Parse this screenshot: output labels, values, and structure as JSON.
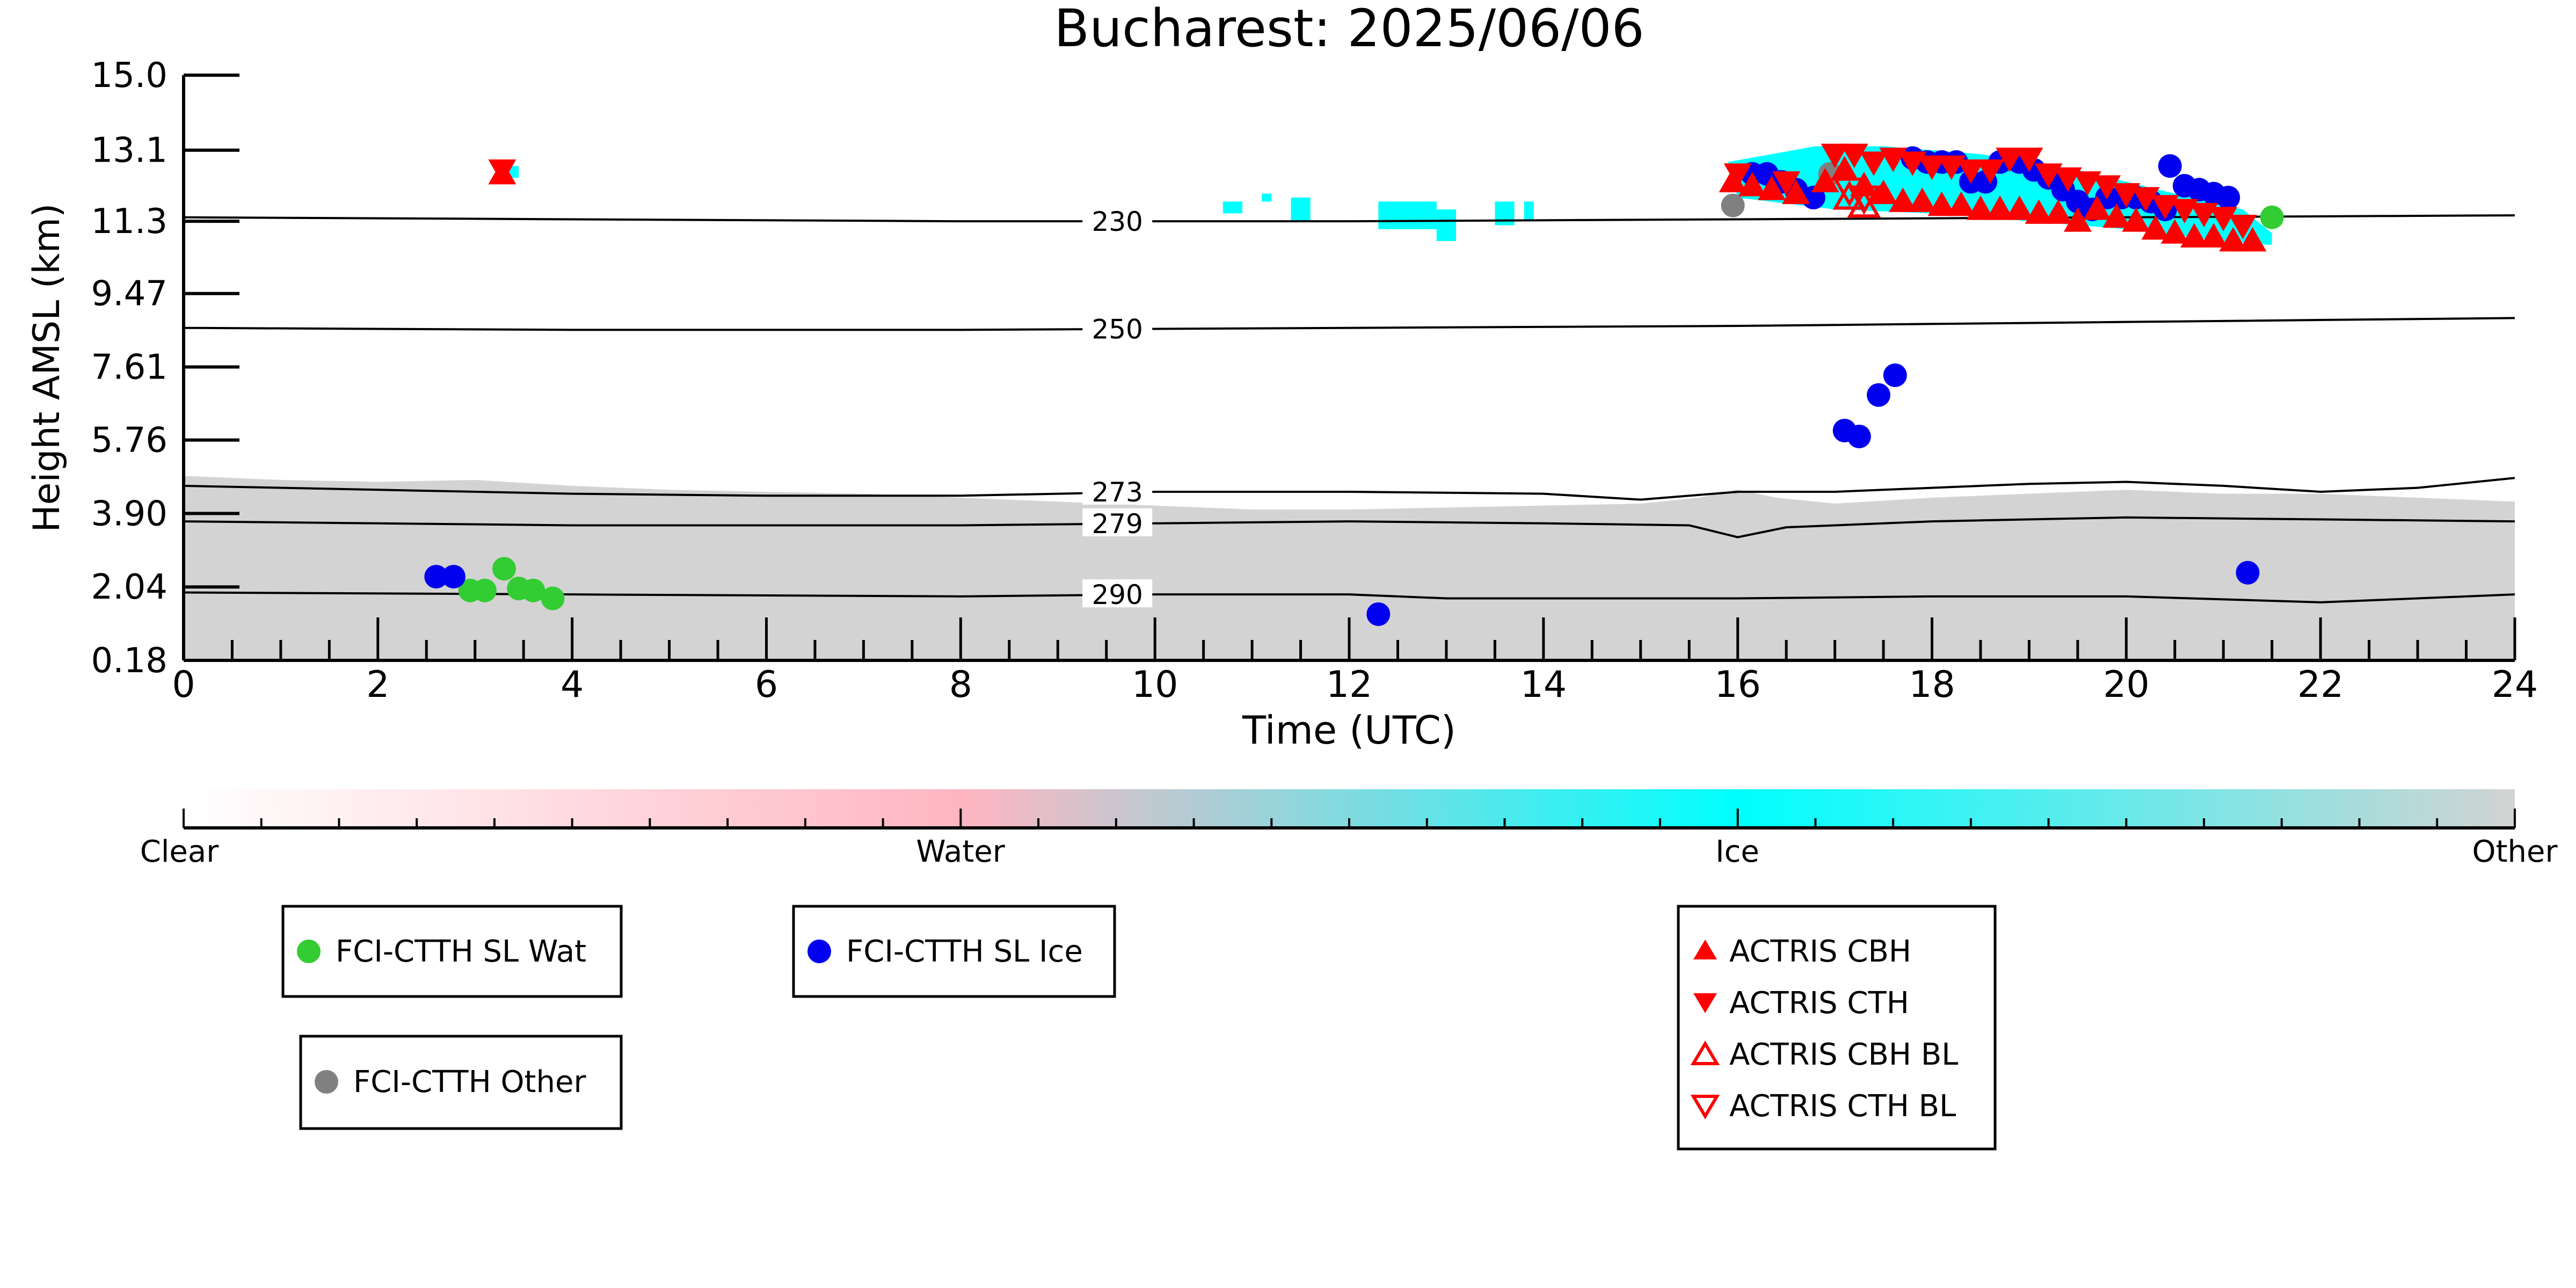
{
  "chart_data": {
    "type": "scatter",
    "title": "Bucharest: 2025/06/06",
    "xlabel": "Time (UTC)",
    "ylabel": "Height AMSL (km)",
    "xlim": [
      0,
      24
    ],
    "ylim": [
      0.18,
      15.0
    ],
    "x_ticks": [
      0,
      2,
      4,
      6,
      8,
      10,
      12,
      14,
      16,
      18,
      20,
      22,
      24
    ],
    "y_ticks": [
      "0.18",
      "2.04",
      "3.90",
      "5.76",
      "7.61",
      "9.47",
      "11.3",
      "13.1",
      "15.0"
    ],
    "grid": false,
    "colorbar": {
      "labels": [
        "Clear",
        "Water",
        "Ice",
        "Other"
      ],
      "colors": [
        "#ffffff",
        "#ffb6c1",
        "#00ffff",
        "#d3d3d3"
      ]
    },
    "temperature_contours": [
      {
        "label": "230",
        "x": [
          0,
          4,
          8,
          12,
          16,
          20,
          24
        ],
        "y": [
          11.4,
          11.35,
          11.3,
          11.3,
          11.35,
          11.4,
          11.45
        ]
      },
      {
        "label": "250",
        "x": [
          0,
          4,
          8,
          12,
          16,
          20,
          24
        ],
        "y": [
          8.6,
          8.55,
          8.55,
          8.6,
          8.65,
          8.75,
          8.85
        ]
      },
      {
        "label": "273",
        "x": [
          0,
          2,
          4,
          6,
          8,
          10,
          12,
          14,
          15,
          16,
          17,
          18,
          19,
          20,
          21,
          22,
          23,
          24
        ],
        "y": [
          4.6,
          4.5,
          4.4,
          4.35,
          4.35,
          4.45,
          4.45,
          4.4,
          4.25,
          4.45,
          4.45,
          4.55,
          4.65,
          4.7,
          4.6,
          4.45,
          4.55,
          4.8
        ]
      },
      {
        "label": "279",
        "x": [
          0,
          2,
          4,
          6,
          8,
          10,
          12,
          14,
          15.5,
          16,
          16.5,
          18,
          20,
          22,
          24
        ],
        "y": [
          3.7,
          3.65,
          3.6,
          3.6,
          3.6,
          3.65,
          3.7,
          3.65,
          3.6,
          3.3,
          3.55,
          3.7,
          3.8,
          3.75,
          3.7
        ]
      },
      {
        "label": "290",
        "x": [
          0,
          4,
          8,
          10,
          12,
          13,
          16,
          18,
          20,
          22,
          24
        ],
        "y": [
          1.9,
          1.85,
          1.8,
          1.85,
          1.85,
          1.75,
          1.75,
          1.8,
          1.8,
          1.65,
          1.85
        ]
      }
    ],
    "series": [
      {
        "name": "FCI-CTTH SL Wat",
        "color": "#33cc33",
        "marker": "circle",
        "x": [
          2.95,
          3.1,
          3.3,
          3.45,
          3.6,
          3.8,
          21.5
        ],
        "y": [
          1.95,
          1.95,
          2.5,
          2.0,
          1.95,
          1.75,
          11.4
        ]
      },
      {
        "name": "FCI-CTTH SL Ice",
        "color": "#0000ee",
        "marker": "circle",
        "x": [
          2.6,
          2.78,
          12.3,
          16.15,
          16.3,
          16.45,
          16.6,
          16.78,
          17.1,
          17.25,
          17.45,
          17.62,
          17.8,
          17.95,
          18.1,
          18.25,
          18.4,
          18.55,
          18.7,
          18.9,
          19.05,
          19.2,
          19.35,
          19.5,
          19.65,
          19.8,
          19.95,
          20.1,
          20.25,
          20.4,
          20.45,
          20.6,
          20.75,
          20.9,
          21.05,
          21.25
        ],
        "y": [
          2.3,
          2.3,
          1.35,
          12.5,
          12.5,
          12.3,
          12.1,
          11.9,
          6.0,
          5.85,
          6.9,
          7.4,
          12.9,
          12.8,
          12.8,
          12.8,
          12.3,
          12.3,
          12.8,
          12.8,
          12.6,
          12.4,
          12.1,
          11.8,
          11.6,
          11.9,
          11.9,
          11.9,
          11.8,
          11.6,
          12.7,
          12.2,
          12.1,
          12.0,
          11.9,
          2.4
        ]
      },
      {
        "name": "FCI-CTTH Other",
        "color": "#808080",
        "marker": "circle",
        "x": [
          15.95,
          16.95
        ],
        "y": [
          11.7,
          12.5
        ]
      },
      {
        "name": "ACTRIS CBH",
        "color": "#ff0000",
        "marker": "triangle-up",
        "x": [
          3.28,
          15.95,
          16.15,
          16.35,
          16.6,
          16.9,
          17.1,
          17.3,
          17.5,
          17.7,
          17.9,
          18.1,
          18.3,
          18.5,
          18.7,
          18.9,
          19.1,
          19.3,
          19.5,
          19.7,
          19.9,
          20.1,
          20.3,
          20.5,
          20.7,
          20.9,
          21.1,
          21.3
        ],
        "y": [
          12.5,
          12.3,
          12.2,
          12.1,
          12.0,
          12.3,
          12.6,
          12.2,
          12.0,
          11.8,
          11.8,
          11.7,
          11.7,
          11.6,
          11.6,
          11.6,
          11.5,
          11.5,
          11.3,
          11.6,
          11.4,
          11.3,
          11.1,
          11.0,
          10.9,
          10.9,
          10.8,
          10.8
        ]
      },
      {
        "name": "ACTRIS CTH",
        "color": "#ff0000",
        "marker": "triangle-down",
        "x": [
          3.28,
          16.0,
          16.5,
          17.0,
          17.2,
          17.4,
          17.6,
          17.8,
          18.0,
          18.2,
          18.4,
          18.6,
          18.8,
          19.0,
          19.2,
          19.4,
          19.6,
          19.8,
          20.0,
          20.2,
          20.4,
          20.6,
          20.8,
          21.0,
          21.2
        ],
        "y": [
          12.6,
          12.5,
          12.3,
          13.0,
          13.0,
          12.8,
          12.9,
          12.8,
          12.7,
          12.7,
          12.6,
          12.6,
          12.9,
          12.9,
          12.5,
          12.4,
          12.3,
          12.2,
          12.0,
          11.9,
          11.7,
          11.6,
          11.5,
          11.4,
          11.2
        ]
      },
      {
        "name": "ACTRIS CBH BL",
        "color": "#ff0000",
        "marker": "triangle-up-open",
        "x": [
          17.15,
          17.3
        ],
        "y": [
          11.9,
          11.7
        ]
      },
      {
        "name": "ACTRIS CTH BL",
        "color": "#ff0000",
        "marker": "triangle-down-open",
        "x": [
          17.15,
          17.3
        ],
        "y": [
          12.1,
          11.9
        ]
      }
    ],
    "legend_boxes": [
      [
        "FCI-CTTH SL Wat"
      ],
      [
        "FCI-CTTH SL Ice"
      ],
      [
        "ACTRIS CBH",
        "ACTRIS CTH",
        "ACTRIS CBH BL",
        "ACTRIS CTH BL"
      ],
      [
        "FCI-CTTH Other"
      ]
    ]
  }
}
